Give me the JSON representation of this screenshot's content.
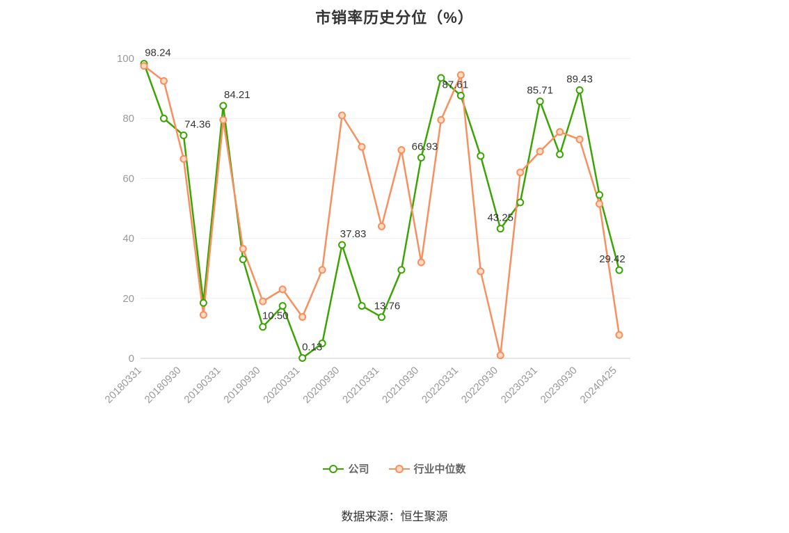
{
  "title": "市销率历史分位（%）",
  "source": "数据来源：恒生聚源",
  "chart_data": {
    "type": "line",
    "title": "市销率历史分位（%）",
    "ylim": [
      0,
      100
    ],
    "yticks": [
      0,
      20,
      40,
      60,
      80,
      100
    ],
    "grid": true,
    "legend_position": "bottom",
    "x_labels": [
      "20180331",
      "20180930",
      "20190331",
      "20190930",
      "20200331",
      "20200930",
      "20210331",
      "20210930",
      "20220331",
      "20220930",
      "20230331",
      "20230930",
      "20240425"
    ],
    "x_label_indices": [
      0,
      2,
      4,
      6,
      8,
      10,
      12,
      14,
      16,
      18,
      20,
      22,
      24
    ],
    "series": [
      {
        "id": "company",
        "name": "公司",
        "color": "#3aa402",
        "marker_fill": "#ffffff",
        "values": [
          98.24,
          80,
          74.36,
          18.5,
          84.21,
          33,
          10.5,
          17.5,
          0.13,
          5,
          37.83,
          17.5,
          13.76,
          29.5,
          66.93,
          93.5,
          87.61,
          67.5,
          43.25,
          52,
          85.71,
          68,
          89.43,
          54.5,
          29.42
        ]
      },
      {
        "id": "industry",
        "name": "行业中位数",
        "color": "#fa8e5d",
        "marker_fill": "#fbdcc3",
        "values": [
          97.5,
          92.5,
          66.5,
          14.5,
          79.5,
          36.5,
          19,
          23,
          13.8,
          29.5,
          81,
          70.5,
          44,
          69.5,
          32,
          79.5,
          94.5,
          29,
          1,
          62,
          69,
          75.5,
          73,
          51.5,
          7.8
        ]
      }
    ],
    "point_labels": [
      {
        "series": "company",
        "index": 0,
        "text": "98.24"
      },
      {
        "series": "company",
        "index": 2,
        "text": "74.36"
      },
      {
        "series": "company",
        "index": 4,
        "text": "84.21"
      },
      {
        "series": "company",
        "index": 6,
        "text": "10.50"
      },
      {
        "series": "company",
        "index": 8,
        "text": "0.13"
      },
      {
        "series": "company",
        "index": 10,
        "text": "37.83"
      },
      {
        "series": "company",
        "index": 12,
        "text": "13.76"
      },
      {
        "series": "company",
        "index": 14,
        "text": "66.93"
      },
      {
        "series": "company",
        "index": 16,
        "text": "87.61"
      },
      {
        "series": "company",
        "index": 18,
        "text": "43.25"
      },
      {
        "series": "company",
        "index": 20,
        "text": "85.71"
      },
      {
        "series": "company",
        "index": 22,
        "text": "89.43"
      },
      {
        "series": "company",
        "index": 24,
        "text": "29.42"
      }
    ]
  }
}
